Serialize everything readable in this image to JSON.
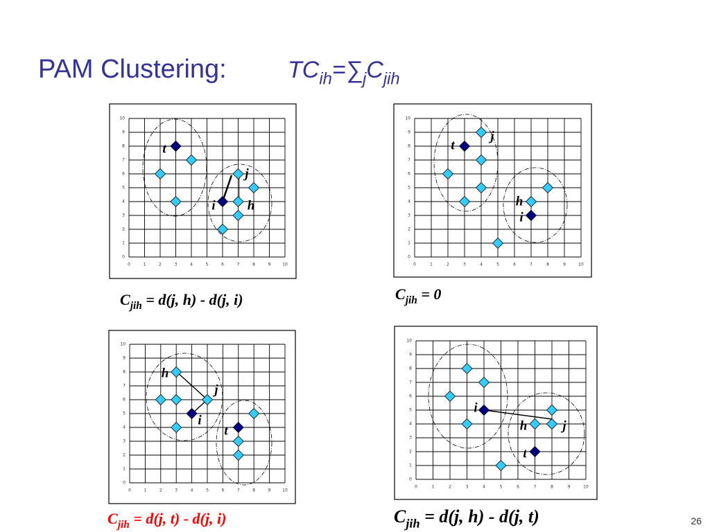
{
  "page_title": {
    "text": "PAM Clustering:",
    "formula": [
      {
        "text": "TC"
      },
      {
        "text": "ih",
        "sub": true
      },
      {
        "text": "="
      },
      {
        "text": "∑"
      },
      {
        "text": "j",
        "sub": true
      },
      {
        "text": "C"
      },
      {
        "text": "jih",
        "sub": true
      }
    ]
  },
  "page_number": "26",
  "chart_data": [
    {
      "type": "scatter",
      "xlim": [
        0,
        10
      ],
      "ylim": [
        0,
        10
      ],
      "xticks": [
        0,
        1,
        2,
        3,
        4,
        5,
        6,
        7,
        8,
        9,
        10
      ],
      "yticks": [
        0,
        1,
        2,
        3,
        4,
        5,
        6,
        7,
        8,
        9,
        10
      ],
      "grid": true,
      "marker": "diamond",
      "series": [
        {
          "color": "#33ccff",
          "x": [
            2,
            3,
            4,
            7,
            8,
            7,
            7,
            6
          ],
          "y": [
            6,
            4,
            7,
            6,
            5,
            4,
            3,
            2
          ]
        },
        {
          "color": "#000080",
          "x": [
            3,
            6
          ],
          "y": [
            8,
            4
          ]
        }
      ],
      "annotations": [
        {
          "text": "t"
        },
        {
          "text": "j"
        },
        {
          "text": "i"
        },
        {
          "text": "h"
        }
      ],
      "caption": {
        "color": "#000000",
        "parts": [
          {
            "text": "C"
          },
          {
            "text": "jih",
            "sub": true
          },
          {
            "text": " = d(j, h) - d(j, i)"
          }
        ]
      }
    },
    {
      "type": "scatter",
      "xlim": [
        0,
        10
      ],
      "ylim": [
        0,
        10
      ],
      "xticks": [
        0,
        1,
        2,
        3,
        4,
        5,
        6,
        7,
        8,
        9,
        10
      ],
      "yticks": [
        0,
        1,
        2,
        3,
        4,
        5,
        6,
        7,
        8,
        9,
        10
      ],
      "grid": true,
      "marker": "diamond",
      "series": [
        {
          "color": "#33ccff",
          "x": [
            2,
            3,
            4,
            4,
            4,
            5,
            7,
            8
          ],
          "y": [
            6,
            4,
            9,
            7,
            5,
            1,
            4,
            5
          ]
        },
        {
          "color": "#000080",
          "x": [
            3,
            7
          ],
          "y": [
            8,
            3
          ]
        }
      ],
      "annotations": [
        {
          "text": "t"
        },
        {
          "text": "j"
        },
        {
          "text": "h"
        },
        {
          "text": "i"
        }
      ],
      "caption": {
        "color": "#000000",
        "parts": [
          {
            "text": "C"
          },
          {
            "text": "jih",
            "sub": true
          },
          {
            "text": " = 0"
          }
        ]
      }
    },
    {
      "type": "scatter",
      "xlim": [
        0,
        10
      ],
      "ylim": [
        0,
        10
      ],
      "xticks": [
        0,
        1,
        2,
        3,
        4,
        5,
        6,
        7,
        8,
        9,
        10
      ],
      "yticks": [
        0,
        1,
        2,
        3,
        4,
        5,
        6,
        7,
        8,
        9,
        10
      ],
      "grid": true,
      "marker": "diamond",
      "series": [
        {
          "color": "#33ccff",
          "x": [
            3,
            2,
            3,
            5,
            3,
            8,
            7,
            7
          ],
          "y": [
            8,
            6,
            6,
            6,
            4,
            5,
            3,
            2
          ]
        },
        {
          "color": "#000080",
          "x": [
            4,
            7
          ],
          "y": [
            5,
            4
          ]
        }
      ],
      "annotations": [
        {
          "text": "h"
        },
        {
          "text": "j"
        },
        {
          "text": "i"
        },
        {
          "text": "t"
        }
      ],
      "caption": {
        "color": "#ff0000",
        "parts": [
          {
            "text": "C"
          },
          {
            "text": "jih",
            "sub": true
          },
          {
            "text": " = d(j, t) - d(j, i)"
          }
        ]
      }
    },
    {
      "type": "scatter",
      "xlim": [
        0,
        10
      ],
      "ylim": [
        0,
        10
      ],
      "xticks": [
        0,
        1,
        2,
        3,
        4,
        5,
        6,
        7,
        8,
        9,
        10
      ],
      "yticks": [
        0,
        1,
        2,
        3,
        4,
        5,
        6,
        7,
        8,
        9,
        10
      ],
      "grid": true,
      "marker": "diamond",
      "series": [
        {
          "color": "#33ccff",
          "x": [
            2,
            3,
            4,
            3,
            5,
            7,
            8,
            8
          ],
          "y": [
            6,
            8,
            7,
            4,
            1,
            4,
            5,
            4
          ]
        },
        {
          "color": "#000080",
          "x": [
            4,
            7
          ],
          "y": [
            5,
            2
          ]
        }
      ],
      "annotations": [
        {
          "text": "i"
        },
        {
          "text": "h"
        },
        {
          "text": "j"
        },
        {
          "text": "t"
        }
      ],
      "caption": {
        "color": "#000000",
        "parts": [
          {
            "text": "C"
          },
          {
            "text": "jih",
            "sub": true
          },
          {
            "text": " = d(j, h) - d(j, t)"
          }
        ]
      }
    }
  ]
}
